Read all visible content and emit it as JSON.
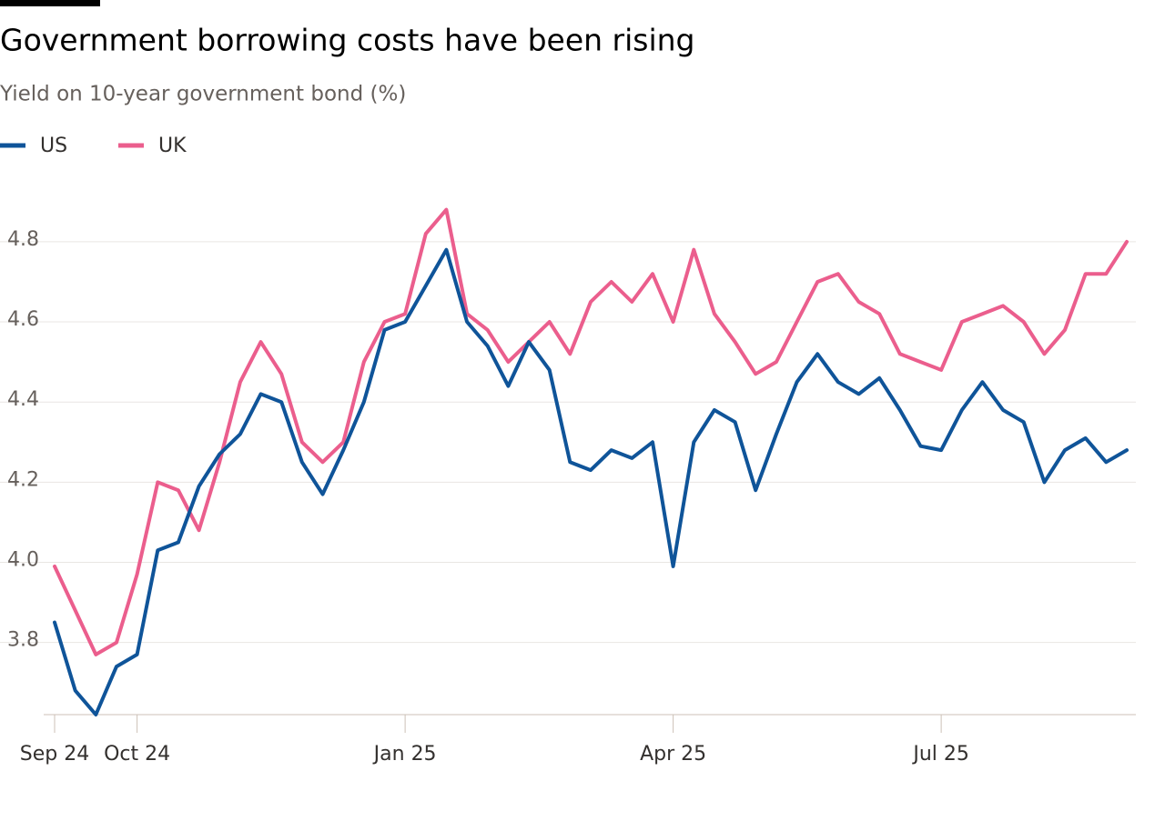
{
  "chart_data": {
    "type": "line",
    "title": "Government borrowing costs have been rising",
    "subtitle": "Yield on 10-year government bond (%)",
    "categories": [
      "Sep 24",
      null,
      null,
      null,
      "Oct 24",
      null,
      null,
      null,
      null,
      null,
      null,
      null,
      null,
      null,
      null,
      null,
      null,
      "Jan 25",
      null,
      null,
      null,
      null,
      null,
      null,
      null,
      null,
      null,
      null,
      null,
      null,
      "Apr 25",
      null,
      null,
      null,
      null,
      null,
      null,
      null,
      null,
      null,
      null,
      null,
      null,
      "Jul 25",
      null,
      null,
      null,
      null,
      null,
      null,
      null,
      null,
      null
    ],
    "series": [
      {
        "name": "US",
        "color": "#0f5499",
        "values": [
          3.85,
          3.68,
          3.62,
          3.74,
          3.77,
          4.03,
          4.05,
          4.19,
          4.27,
          4.32,
          4.42,
          4.4,
          4.25,
          4.17,
          4.28,
          4.4,
          4.58,
          4.6,
          4.69,
          4.78,
          4.6,
          4.54,
          4.44,
          4.55,
          4.48,
          4.25,
          4.23,
          4.28,
          4.26,
          4.3,
          3.99,
          4.3,
          4.38,
          4.35,
          4.18,
          4.32,
          4.45,
          4.52,
          4.45,
          4.42,
          4.46,
          4.38,
          4.29,
          4.28,
          4.38,
          4.45,
          4.38,
          4.35,
          4.2,
          4.28,
          4.31,
          4.25,
          4.28
        ]
      },
      {
        "name": "UK",
        "color": "#eb5e8d",
        "values": [
          3.99,
          3.88,
          3.77,
          3.8,
          3.97,
          4.2,
          4.18,
          4.08,
          4.25,
          4.45,
          4.55,
          4.47,
          4.3,
          4.25,
          4.3,
          4.5,
          4.6,
          4.62,
          4.82,
          4.88,
          4.62,
          4.58,
          4.5,
          4.55,
          4.6,
          4.52,
          4.65,
          4.7,
          4.65,
          4.72,
          4.6,
          4.78,
          4.62,
          4.55,
          4.47,
          4.5,
          4.6,
          4.7,
          4.72,
          4.65,
          4.62,
          4.52,
          4.5,
          4.48,
          4.6,
          4.62,
          4.64,
          4.6,
          4.52,
          4.58,
          4.72,
          4.72,
          4.8
        ]
      }
    ],
    "ylim": [
      3.62,
      4.92
    ],
    "yticks": [
      3.8,
      {
        "value": 4,
        "label": "4.0"
      },
      4.2,
      4.4,
      4.6,
      4.8
    ],
    "grid": true
  }
}
